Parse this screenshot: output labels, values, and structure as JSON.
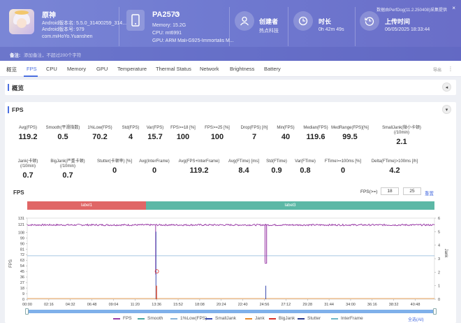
{
  "app": {
    "name": "原神",
    "android_version": "Android版本名: 5.5.0_31400259_314...",
    "android_code": "Android版本号: 979",
    "package": "com.miHoYo.Yuanshen"
  },
  "device": {
    "name": "PA2573",
    "memory": "Memory: 15.2G",
    "cpu": "CPU: mt6991",
    "gpu": "GPU: ARM Mali-G925-Immortalis M..."
  },
  "creator": {
    "title": "创建者",
    "value": "热点科技"
  },
  "duration": {
    "title": "时长",
    "value": "0h 42m 49s"
  },
  "upload": {
    "title": "上传时间",
    "value": "06/05/2025 18:33:44"
  },
  "perfdog_note": "数据由PerfDog(11.2.250408)采集提供",
  "note": {
    "label": "备注:",
    "placeholder": "添加备注，不超过200个字符"
  },
  "tabs": [
    "概览",
    "FPS",
    "CPU",
    "Memory",
    "GPU",
    "Temperature",
    "Thermal Status",
    "Network",
    "Brightness",
    "Battery"
  ],
  "active_tab": "FPS",
  "export_label": "导出",
  "overview_title": "概览",
  "fps_section_title": "FPS",
  "stats_row1": [
    {
      "label": "Avg(FPS)",
      "value": "119.2"
    },
    {
      "label": "Smooth(平滑指数)",
      "value": "0.5"
    },
    {
      "label": "1%Low(FPS)",
      "value": "70.2"
    },
    {
      "label": "Std(FPS)",
      "value": "4"
    },
    {
      "label": "Var(FPS)",
      "value": "15.7"
    },
    {
      "label": "FPS>=18 [%]",
      "value": "100"
    },
    {
      "label": "FPS>=25 [%]",
      "value": "100"
    },
    {
      "label": "Drop(FPS) [/h]",
      "value": "7"
    },
    {
      "label": "Min(FPS)",
      "value": "40"
    },
    {
      "label": "Median(FPS)",
      "value": "119.6"
    },
    {
      "label": "MedRange(FPS)[%]",
      "value": "99.5"
    },
    {
      "label": "SmallJank(微小卡顿)\n(/10min)",
      "value": "2.1"
    }
  ],
  "stats_row2": [
    {
      "label": "Jank(卡顿)\n(/10min)",
      "value": "0.7"
    },
    {
      "label": "BigJank(严重卡顿)\n(/10min)",
      "value": "0.7"
    },
    {
      "label": "Stutter(卡顿率) [%]",
      "value": "0"
    },
    {
      "label": "Avg(InterFrame)",
      "value": "0"
    },
    {
      "label": "Avg(FPS+InterFrame)",
      "value": "119.2"
    },
    {
      "label": "Avg(FTime) [ms]",
      "value": "8.4"
    },
    {
      "label": "Std(FTime)",
      "value": "0.9"
    },
    {
      "label": "Var(FTime)",
      "value": "0.8"
    },
    {
      "label": "FTime>=100ms [%]",
      "value": "0"
    },
    {
      "label": "Delta(FTime)>100ms [/h]",
      "value": "4.2"
    }
  ],
  "chart_header": {
    "title": "FPS",
    "fps_ge_label": "FPS(>=)",
    "fps_ge_1": "18",
    "fps_ge_2": "25",
    "reset_label": "重置"
  },
  "labels": [
    {
      "name": "label1",
      "color": "#e06666"
    },
    {
      "name": "label3",
      "color": "#5cb8a6"
    }
  ],
  "chart_data": {
    "type": "line",
    "title": "FPS",
    "ylabel": "FPS",
    "y2label": "Jank",
    "ylim": [
      0,
      131
    ],
    "y2lim": [
      0,
      6
    ],
    "yticks": [
      0,
      9,
      18,
      27,
      36,
      45,
      54,
      63,
      72,
      81,
      90,
      99,
      108,
      121,
      131
    ],
    "y2ticks": [
      0,
      1,
      2,
      3,
      4,
      5,
      6
    ],
    "xticks": [
      "00:00",
      "02:16",
      "04:32",
      "06:48",
      "09:04",
      "11:20",
      "13:36",
      "15:52",
      "18:08",
      "20:24",
      "22:40",
      "24:56",
      "27:12",
      "29:28",
      "31:44",
      "34:00",
      "36:16",
      "38:32",
      "40:48"
    ],
    "xlim_seconds": [
      0,
      2569
    ],
    "series": [
      {
        "name": "FPS",
        "color": "#9b3ea8",
        "baseline": 120,
        "dips": [
          {
            "t": 810,
            "v": 40
          },
          {
            "t": 1500,
            "v": 60
          },
          {
            "t": 1510,
            "v": 58
          }
        ]
      },
      {
        "name": "Smooth",
        "color": "#4aa8a0"
      },
      {
        "name": "1%Low(FPS)",
        "color": "#8ab4d8",
        "value": 70.2
      },
      {
        "name": "SmallJank",
        "color": "#3a4bb0",
        "spikes": [
          {
            "t": 812,
            "v": 5
          },
          {
            "t": 1505,
            "v": 1
          }
        ]
      },
      {
        "name": "Jank",
        "color": "#e88a2a",
        "spikes": [
          {
            "t": 814,
            "v": 1
          }
        ]
      },
      {
        "name": "BigJank",
        "color": "#d9332b",
        "spikes": [
          {
            "t": 816,
            "v": 1
          }
        ]
      },
      {
        "name": "Stutter",
        "color": "#2b3a8c"
      },
      {
        "name": "InterFrame",
        "color": "#6fb8c8"
      }
    ]
  },
  "select_all": "全选(All)"
}
